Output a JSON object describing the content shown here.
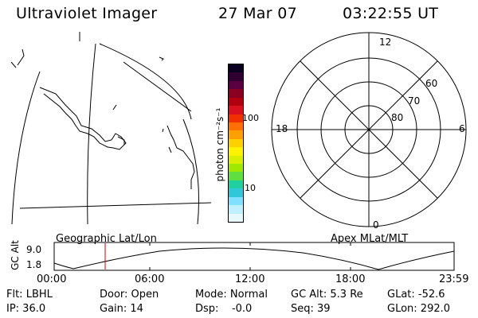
{
  "header": {
    "title": "Ultraviolet Imager",
    "date": "27 Mar 07",
    "time": "03:22:55 UT"
  },
  "colorbar": {
    "label": "photon cm⁻²s⁻¹",
    "ticks": [
      "100",
      "10"
    ],
    "colors": [
      "#0a0020",
      "#300030",
      "#5a0040",
      "#8a0020",
      "#b00010",
      "#d81020",
      "#f03000",
      "#ff7000",
      "#ffa000",
      "#ffd000",
      "#fff200",
      "#d8f000",
      "#a0e800",
      "#60e040",
      "#20d0a0",
      "#30c8d8",
      "#80e0ff",
      "#c0f0ff",
      "#e8f8ff"
    ]
  },
  "left_panel_label": "Geographic Lat/Lon",
  "polar": {
    "top": "12",
    "left": "18",
    "right": "6",
    "bottom": "0",
    "lat_labels": [
      "60",
      "70",
      "80"
    ]
  },
  "right_panel_label": "Apex MLat/MLT",
  "altitude_plot": {
    "ylabel": "GC Alt",
    "yticks": [
      "9.0",
      "1.8"
    ],
    "xticks": [
      "00:00",
      "06:00",
      "12:00",
      "18:00",
      "23:59"
    ],
    "marker_time": "03:22:55",
    "marker_color": "#d00000"
  },
  "status": {
    "row1": [
      "Flt: LBHL",
      "Door: Open",
      "Mode: Normal",
      "GC Alt: 5.3 Re",
      "GLat: -52.6"
    ],
    "row2": [
      "IP: 36.0",
      "Gain: 14",
      "Dsp:    -0.0",
      "Seq: 39",
      "GLon: 292.0"
    ]
  }
}
